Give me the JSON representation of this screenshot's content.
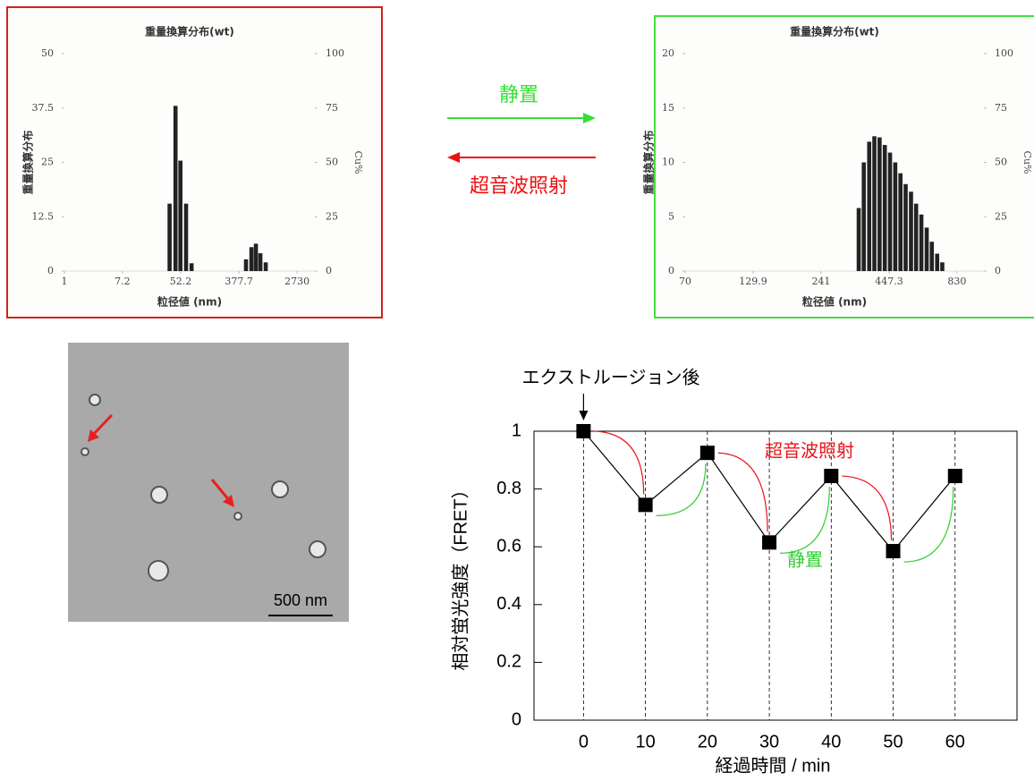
{
  "chart_data": [
    {
      "type": "bar",
      "title": "重量換算分布(wt)",
      "x_label": "粒径値 (nm)",
      "y_label": "重量換算分布",
      "y2_label": "Cu%",
      "xscale": "log",
      "x": [
        36,
        44,
        52,
        63,
        76,
        484,
        582,
        677,
        789,
        946
      ],
      "values": [
        15.5,
        38,
        25.4,
        15.5,
        1.8,
        2.7,
        5.5,
        6.3,
        4.1,
        2
      ],
      "color": "#222222",
      "xlim": [
        1,
        5000
      ],
      "xticks": [
        1,
        7.2,
        52.2,
        377.7,
        2730
      ],
      "ylim": [
        0,
        50
      ],
      "yticks": [
        0,
        12.5,
        25,
        37.5,
        50
      ],
      "y2lim": [
        0,
        100
      ],
      "y2ticks": [
        0,
        25,
        50,
        75,
        100
      ]
    },
    {
      "type": "bar",
      "title": "重量換算分布(wt)",
      "x_label": "粒径値 (nm)",
      "y_label": "重量換算分布",
      "y2_label": "Cu%",
      "xscale": "log",
      "x": [
        340,
        356,
        374,
        392,
        411,
        431,
        452,
        474,
        497,
        521,
        547,
        573,
        601,
        631,
        661,
        694,
        727
      ],
      "values": [
        5.8,
        10,
        11.9,
        12.4,
        12.3,
        11.6,
        10.9,
        10,
        9,
        8,
        7.3,
        6.2,
        5.2,
        4,
        2.7,
        1.6,
        0.8
      ],
      "color": "#222222",
      "xlim": [
        70,
        1060
      ],
      "xticks": [
        70,
        129.9,
        241,
        447.3,
        830
      ],
      "ylim": [
        0,
        20
      ],
      "yticks": [
        0,
        5,
        10,
        15,
        20
      ],
      "y2lim": [
        0,
        100
      ],
      "y2ticks": [
        0,
        25,
        50,
        75,
        100
      ]
    },
    {
      "type": "line",
      "x_label": "経過時間 / min",
      "y_label": "相対蛍光強度（FRET）",
      "x": [
        0,
        10,
        20,
        30,
        40,
        50,
        60
      ],
      "values": [
        1,
        0.745,
        0.925,
        0.615,
        0.845,
        0.585,
        0.845
      ],
      "color": "#000000",
      "xlim": [
        -8,
        70
      ],
      "xticks": [
        0,
        10,
        20,
        30,
        40,
        50,
        60
      ],
      "ylim": [
        0,
        1
      ],
      "yticks": [
        0,
        0.2,
        0.4,
        0.6,
        0.8,
        1
      ],
      "xgrid": true,
      "annotations": [
        {
          "text": "エクストルージョン後",
          "color": "#000000"
        },
        {
          "text": "超音波照射",
          "color": "#e8141b"
        },
        {
          "text": "静置",
          "color": "#2fcf2f"
        }
      ]
    }
  ],
  "arrows": [
    {
      "label": "静置",
      "color": "#33e033"
    },
    {
      "label": "超音波照射",
      "color": "#ee1111"
    }
  ],
  "micrograph": {
    "scale_bar": "500 nm"
  }
}
